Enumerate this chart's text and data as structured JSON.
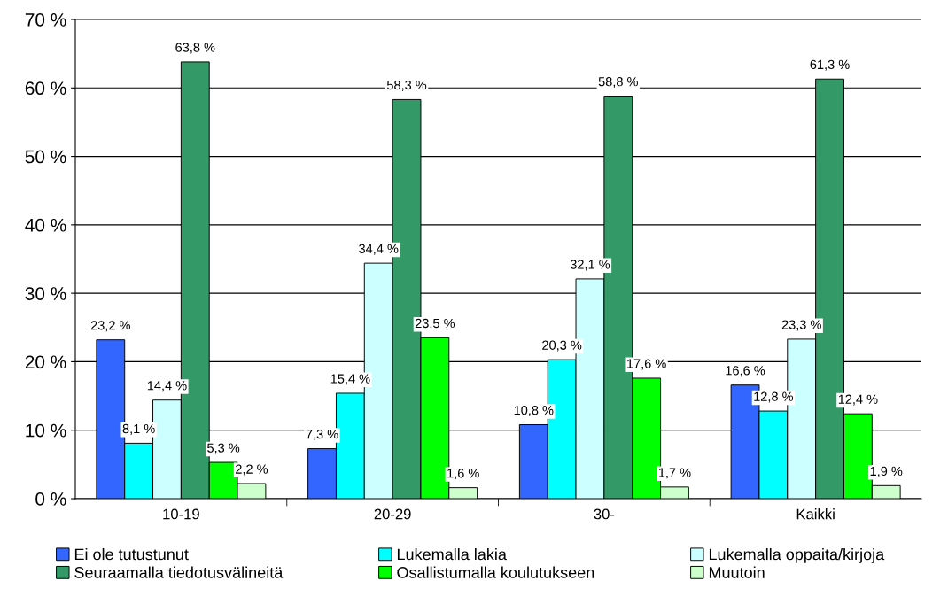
{
  "chart_data": {
    "type": "bar",
    "categories": [
      "10-19",
      "20-29",
      "30-",
      "Kaikki"
    ],
    "ylim": [
      0,
      70
    ],
    "yticks": [
      {
        "value": 0,
        "label": "0 %"
      },
      {
        "value": 10,
        "label": "10 %"
      },
      {
        "value": 20,
        "label": "20 %"
      },
      {
        "value": 30,
        "label": "30 %"
      },
      {
        "value": 40,
        "label": "40 %"
      },
      {
        "value": 50,
        "label": "50 %"
      },
      {
        "value": 60,
        "label": "60 %"
      },
      {
        "value": 70,
        "label": "70 %"
      }
    ],
    "grid": "y",
    "legend": "bottom",
    "series": [
      {
        "name": "Ei ole tutustunut",
        "color": "#3366ff",
        "values": [
          23.2,
          7.3,
          10.8,
          16.6
        ],
        "value_labels": [
          "23,2 %",
          "7,3 %",
          "10,8 %",
          "16,6 %"
        ]
      },
      {
        "name": "Lukemalla lakia",
        "color": "#00ffff",
        "values": [
          8.1,
          15.4,
          20.3,
          12.8
        ],
        "value_labels": [
          "8,1 %",
          "15,4 %",
          "20,3 %",
          "12,8 %"
        ]
      },
      {
        "name": "Lukemalla oppaita/kirjoja",
        "color": "#ccffff",
        "values": [
          14.4,
          34.4,
          32.1,
          23.3
        ],
        "value_labels": [
          "14,4 %",
          "34,4 %",
          "32,1 %",
          "23,3 %"
        ]
      },
      {
        "name": "Seuraamalla tiedotusvälineitä",
        "color": "#339966",
        "values": [
          63.8,
          58.3,
          58.8,
          61.3
        ],
        "value_labels": [
          "63,8 %",
          "58,3 %",
          "58,8 %",
          "61,3 %"
        ]
      },
      {
        "name": "Osallistumalla koulutukseen",
        "color": "#00ff00",
        "values": [
          5.3,
          23.5,
          17.6,
          12.4
        ],
        "value_labels": [
          "5,3 %",
          "23,5 %",
          "17,6 %",
          "12,4 %"
        ]
      },
      {
        "name": "Muutoin",
        "color": "#ccffcc",
        "values": [
          2.2,
          1.6,
          1.7,
          1.9
        ],
        "value_labels": [
          "2,2 %",
          "1,6 %",
          "1,7 %",
          "1,9 %"
        ]
      }
    ]
  }
}
